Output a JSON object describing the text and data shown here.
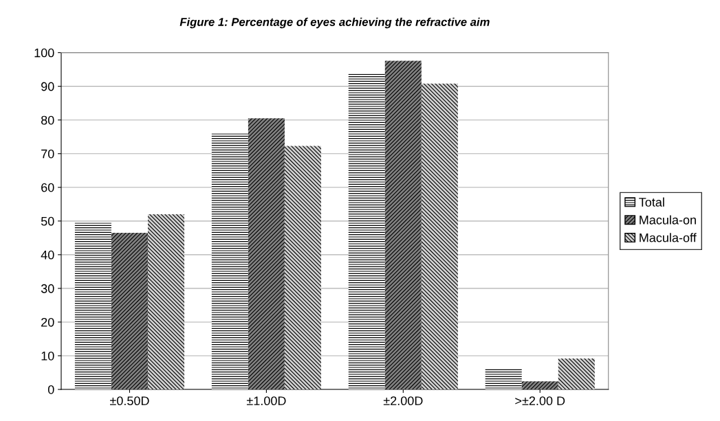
{
  "chart_data": {
    "type": "bar",
    "title": "Figure 1: Percentage of eyes achieving the refractive aim",
    "categories": [
      "±0.50D",
      "±1.00D",
      "±2.00D",
      ">±2.00 D"
    ],
    "series": [
      {
        "name": "Total",
        "color": "#ffffff",
        "values": [
          49.5,
          76,
          93.7,
          6.3
        ]
      },
      {
        "name": "Macula-on",
        "color": "#808080",
        "values": [
          46.5,
          80.5,
          97.6,
          2.4
        ]
      },
      {
        "name": "Macula-off",
        "color": "#d0d0d0",
        "values": [
          52,
          72.3,
          90.8,
          9.2
        ]
      }
    ],
    "ylim": [
      0,
      100
    ],
    "yticks": [
      0,
      10,
      20,
      30,
      40,
      50,
      60,
      70,
      80,
      90,
      100
    ],
    "grid": "y",
    "legend": "right"
  }
}
